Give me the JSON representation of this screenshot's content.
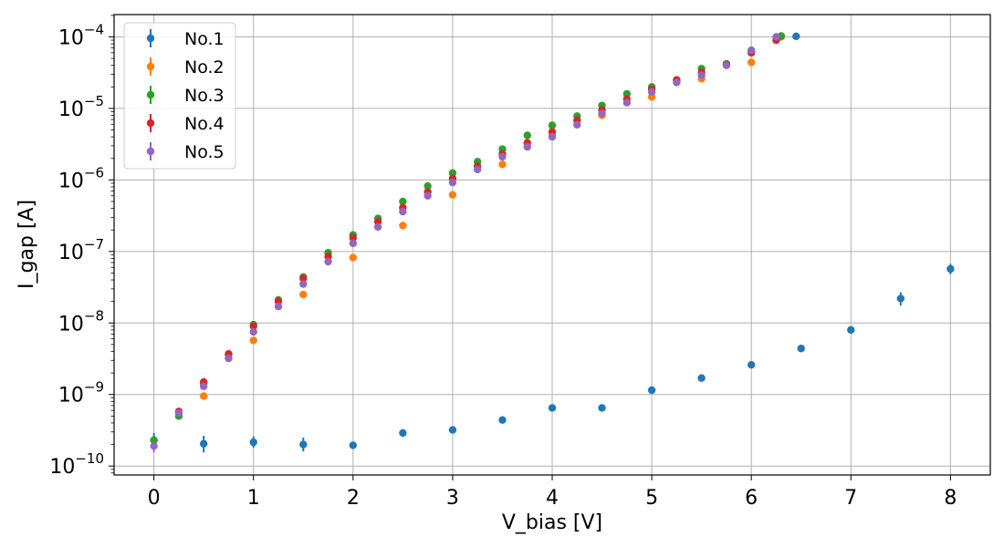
{
  "chart_data": {
    "type": "scatter",
    "xlabel": "V_bias [V]",
    "ylabel": "I_gap [A]",
    "xscale": "linear",
    "yscale": "log",
    "xlim": [
      -0.4,
      8.4
    ],
    "ylim": [
      7.5e-11,
      0.000205
    ],
    "grid": true,
    "legend_position": "top-left",
    "x_ticks": [
      0,
      1,
      2,
      3,
      4,
      5,
      6,
      7,
      8
    ],
    "x_tick_labels": [
      "0",
      "1",
      "2",
      "3",
      "4",
      "5",
      "6",
      "7",
      "8"
    ],
    "y_ticks": [
      1e-10,
      1e-09,
      1e-08,
      1e-07,
      1e-06,
      1e-05,
      0.0001
    ],
    "y_tick_labels": [
      {
        "base": "10",
        "exp": "−10"
      },
      {
        "base": "10",
        "exp": "−9"
      },
      {
        "base": "10",
        "exp": "−8"
      },
      {
        "base": "10",
        "exp": "−7"
      },
      {
        "base": "10",
        "exp": "−6"
      },
      {
        "base": "10",
        "exp": "−5"
      },
      {
        "base": "10",
        "exp": "−4"
      }
    ],
    "series": [
      {
        "name": "No.1",
        "color": "#1f77b4",
        "points": [
          {
            "x": 0,
            "y": 2.3e-10,
            "err": [
              1.8e-10,
              2.9e-10
            ]
          },
          {
            "x": 0.5,
            "y": 2.05e-10,
            "err": [
              1.55e-10,
              2.65e-10
            ]
          },
          {
            "x": 1,
            "y": 2.15e-10,
            "err": [
              1.8e-10,
              2.6e-10
            ]
          },
          {
            "x": 1.5,
            "y": 2e-10,
            "err": [
              1.6e-10,
              2.5e-10
            ]
          },
          {
            "x": 2,
            "y": 1.95e-10
          },
          {
            "x": 2.5,
            "y": 2.9e-10
          },
          {
            "x": 3,
            "y": 3.2e-10
          },
          {
            "x": 3.5,
            "y": 4.4e-10
          },
          {
            "x": 4,
            "y": 6.5e-10
          },
          {
            "x": 4.5,
            "y": 6.5e-10
          },
          {
            "x": 5,
            "y": 1.15e-09
          },
          {
            "x": 5.5,
            "y": 1.7e-09
          },
          {
            "x": 6,
            "y": 2.6e-09
          },
          {
            "x": 6.5,
            "y": 4.4e-09
          },
          {
            "x": 7,
            "y": 8e-09
          },
          {
            "x": 7.5,
            "y": 2.2e-08,
            "err": [
              1.75e-08,
              2.7e-08
            ]
          },
          {
            "x": 8,
            "y": 5.7e-08,
            "err": [
              4.8e-08,
              6.7e-08
            ]
          },
          {
            "x": 6.45,
            "y": 0.000102
          }
        ]
      },
      {
        "name": "No.2",
        "color": "#ff7f0e",
        "points": [
          {
            "x": 0.5,
            "y": 9.5e-10
          },
          {
            "x": 1,
            "y": 5.7e-09
          },
          {
            "x": 1.5,
            "y": 2.5e-08
          },
          {
            "x": 2,
            "y": 8.2e-08
          },
          {
            "x": 2.5,
            "y": 2.3e-07
          },
          {
            "x": 3,
            "y": 6.2e-07
          },
          {
            "x": 3.5,
            "y": 1.65e-06
          },
          {
            "x": 4,
            "y": 4.2e-06
          },
          {
            "x": 4.5,
            "y": 8e-06
          },
          {
            "x": 5,
            "y": 1.45e-05
          },
          {
            "x": 5.5,
            "y": 2.6e-05
          },
          {
            "x": 6,
            "y": 4.4e-05
          },
          {
            "x": 6.3,
            "y": 0.0001
          }
        ]
      },
      {
        "name": "No.3",
        "color": "#2ca02c",
        "points": [
          {
            "x": 0,
            "y": 2.3e-10
          },
          {
            "x": 0.25,
            "y": 5e-10
          },
          {
            "x": 0.5,
            "y": 1.4e-09
          },
          {
            "x": 0.75,
            "y": 3.6e-09
          },
          {
            "x": 1,
            "y": 9.5e-09
          },
          {
            "x": 1.25,
            "y": 2.1e-08
          },
          {
            "x": 1.5,
            "y": 4.4e-08
          },
          {
            "x": 1.75,
            "y": 9.6e-08
          },
          {
            "x": 2,
            "y": 1.7e-07
          },
          {
            "x": 2.25,
            "y": 2.9e-07
          },
          {
            "x": 2.5,
            "y": 5e-07
          },
          {
            "x": 2.75,
            "y": 8.2e-07
          },
          {
            "x": 3,
            "y": 1.25e-06
          },
          {
            "x": 3.25,
            "y": 1.8e-06
          },
          {
            "x": 3.5,
            "y": 2.7e-06
          },
          {
            "x": 3.75,
            "y": 4.2e-06
          },
          {
            "x": 4,
            "y": 5.8e-06
          },
          {
            "x": 4.25,
            "y": 7.8e-06
          },
          {
            "x": 4.5,
            "y": 1.1e-05
          },
          {
            "x": 4.75,
            "y": 1.6e-05
          },
          {
            "x": 5,
            "y": 2e-05
          },
          {
            "x": 5.25,
            "y": 2.5e-05
          },
          {
            "x": 5.5,
            "y": 3.6e-05
          },
          {
            "x": 5.75,
            "y": 4.2e-05
          },
          {
            "x": 6,
            "y": 6.2e-05
          },
          {
            "x": 6.25,
            "y": 9e-05
          },
          {
            "x": 6.3,
            "y": 0.000103
          }
        ]
      },
      {
        "name": "No.4",
        "color": "#d62728",
        "points": [
          {
            "x": 0.25,
            "y": 5.8e-10
          },
          {
            "x": 0.5,
            "y": 1.5e-09
          },
          {
            "x": 0.75,
            "y": 3.7e-09
          },
          {
            "x": 1,
            "y": 9e-09
          },
          {
            "x": 1.25,
            "y": 2e-08
          },
          {
            "x": 1.5,
            "y": 4.2e-08
          },
          {
            "x": 1.75,
            "y": 8.5e-08
          },
          {
            "x": 2,
            "y": 1.55e-07
          },
          {
            "x": 2.25,
            "y": 2.6e-07
          },
          {
            "x": 2.5,
            "y": 4.1e-07
          },
          {
            "x": 2.75,
            "y": 6.8e-07
          },
          {
            "x": 3,
            "y": 1.05e-06
          },
          {
            "x": 3.25,
            "y": 1.55e-06
          },
          {
            "x": 3.5,
            "y": 2.3e-06
          },
          {
            "x": 3.75,
            "y": 3.3e-06
          },
          {
            "x": 4,
            "y": 4.7e-06
          },
          {
            "x": 4.25,
            "y": 6.8e-06
          },
          {
            "x": 4.5,
            "y": 9.5e-06
          },
          {
            "x": 4.75,
            "y": 1.35e-05
          },
          {
            "x": 5,
            "y": 1.85e-05
          },
          {
            "x": 5.25,
            "y": 2.5e-05
          },
          {
            "x": 5.5,
            "y": 3.2e-05
          },
          {
            "x": 5.75,
            "y": 4.1e-05
          },
          {
            "x": 6,
            "y": 6e-05
          },
          {
            "x": 6.25,
            "y": 9e-05
          }
        ]
      },
      {
        "name": "No.5",
        "color": "#9467bd",
        "points": [
          {
            "x": 0,
            "y": 1.9e-10,
            "err": [
              1.55e-10,
              2.3e-10
            ]
          },
          {
            "x": 0.25,
            "y": 5.5e-10
          },
          {
            "x": 0.5,
            "y": 1.3e-09
          },
          {
            "x": 0.75,
            "y": 3.2e-09
          },
          {
            "x": 1,
            "y": 7.5e-09
          },
          {
            "x": 1.25,
            "y": 1.7e-08
          },
          {
            "x": 1.5,
            "y": 3.5e-08
          },
          {
            "x": 1.75,
            "y": 7.2e-08
          },
          {
            "x": 2,
            "y": 1.3e-07
          },
          {
            "x": 2.25,
            "y": 2.2e-07
          },
          {
            "x": 2.5,
            "y": 3.6e-07
          },
          {
            "x": 2.75,
            "y": 6e-07
          },
          {
            "x": 3,
            "y": 9.2e-07
          },
          {
            "x": 3.25,
            "y": 1.4e-06
          },
          {
            "x": 3.5,
            "y": 2.1e-06
          },
          {
            "x": 3.75,
            "y": 2.9e-06
          },
          {
            "x": 4,
            "y": 4e-06
          },
          {
            "x": 4.25,
            "y": 5.9e-06
          },
          {
            "x": 4.5,
            "y": 8.5e-06
          },
          {
            "x": 4.75,
            "y": 1.2e-05
          },
          {
            "x": 5,
            "y": 1.7e-05
          },
          {
            "x": 5.25,
            "y": 2.3e-05
          },
          {
            "x": 5.5,
            "y": 2.9e-05
          },
          {
            "x": 5.75,
            "y": 4e-05
          },
          {
            "x": 6,
            "y": 6.5e-05
          },
          {
            "x": 6.25,
            "y": 0.0001
          }
        ]
      }
    ]
  }
}
